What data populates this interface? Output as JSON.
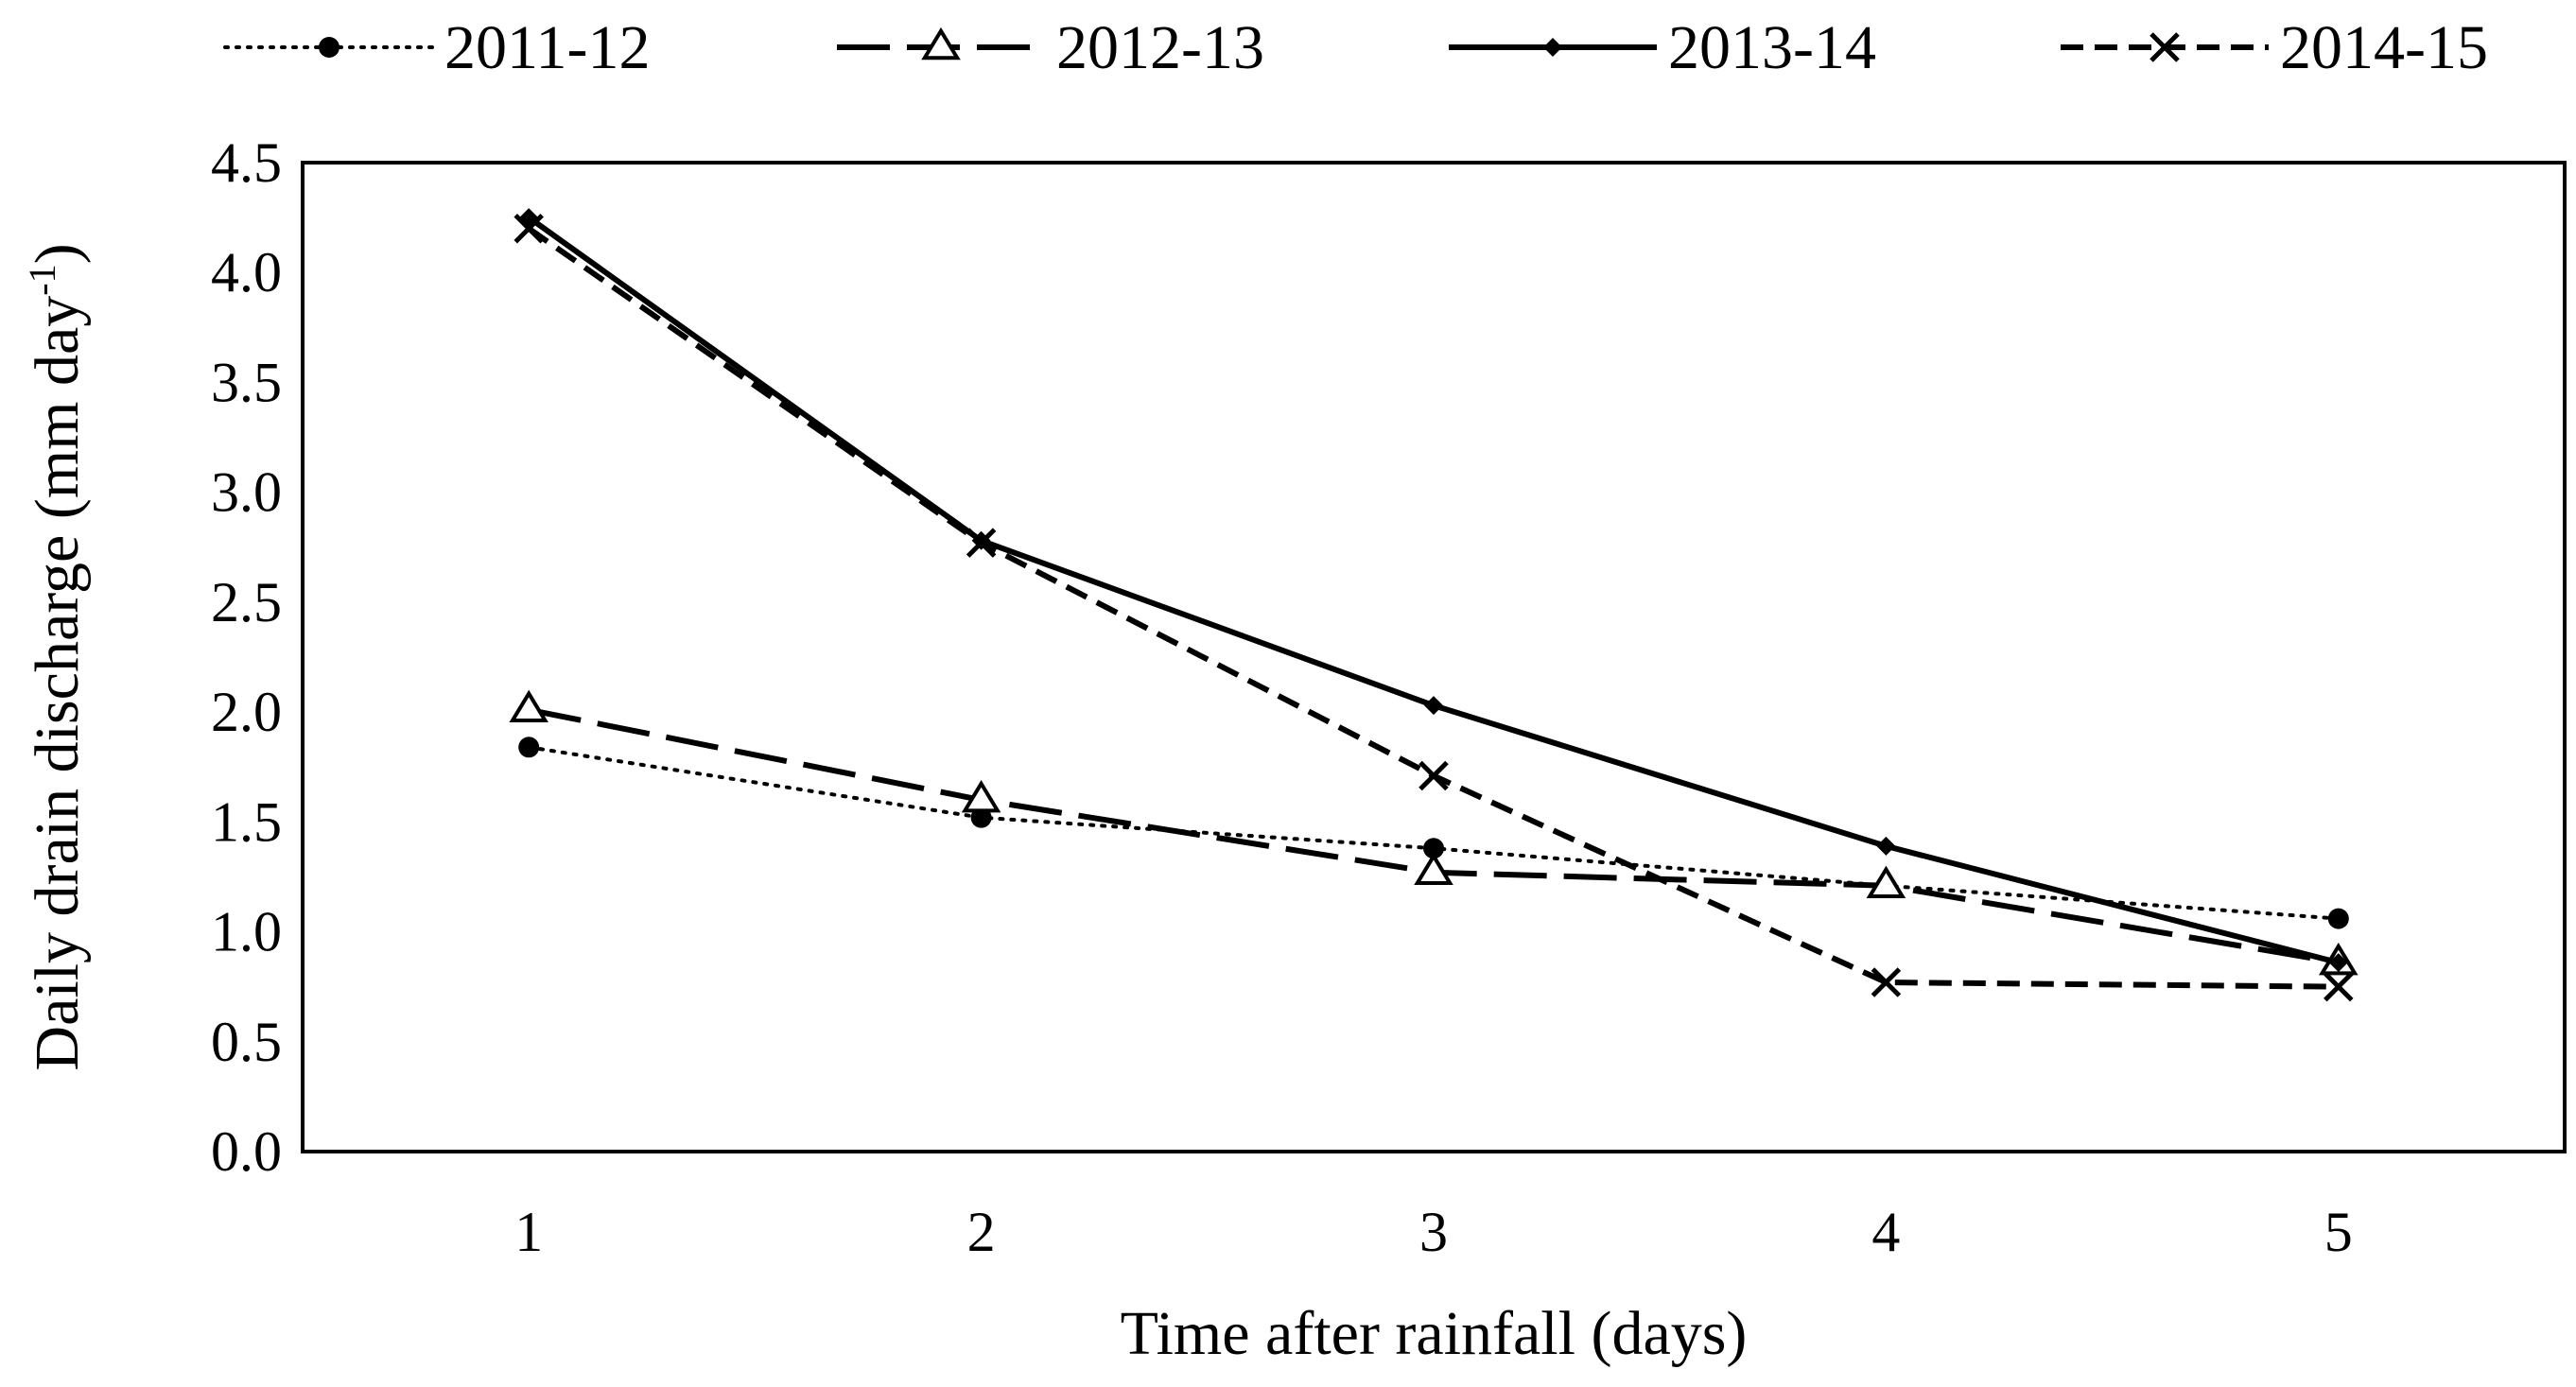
{
  "chart_data": {
    "type": "line",
    "title": "",
    "xlabel": "Time after rainfall (days)",
    "ylabel_main": "Daily drain discharge (mm day",
    "ylabel_sup": "-1",
    "ylabel_close": ")",
    "categories": [
      "1",
      "2",
      "3",
      "4",
      "5"
    ],
    "x": [
      1,
      2,
      3,
      4,
      5
    ],
    "ylim": [
      0,
      4.5
    ],
    "yticks": [
      "0.0",
      "0.5",
      "1.0",
      "1.5",
      "2.0",
      "2.5",
      "3.0",
      "3.5",
      "4.0",
      "4.5"
    ],
    "grid": false,
    "legend_position": "top",
    "series": [
      {
        "name": "2011-12",
        "values": [
          1.84,
          1.52,
          1.38,
          1.21,
          1.06
        ],
        "line_style": "dotted",
        "marker": "circle"
      },
      {
        "name": "2012-13",
        "values": [
          2.01,
          1.6,
          1.27,
          1.21,
          0.86
        ],
        "line_style": "long-dash",
        "marker": "triangle"
      },
      {
        "name": "2013-14",
        "values": [
          4.25,
          2.78,
          2.03,
          1.39,
          0.86
        ],
        "line_style": "solid",
        "marker": "diamond"
      },
      {
        "name": "2014-15",
        "values": [
          4.2,
          2.77,
          1.71,
          0.77,
          0.75
        ],
        "line_style": "dash",
        "marker": "x"
      }
    ]
  }
}
